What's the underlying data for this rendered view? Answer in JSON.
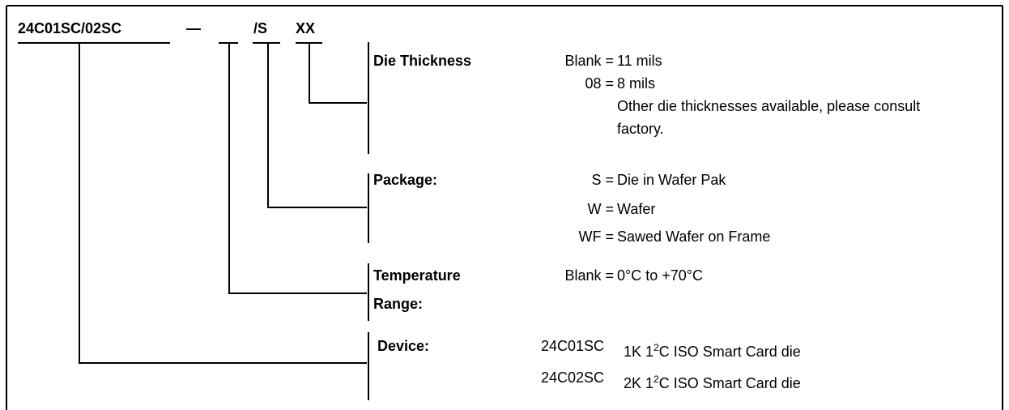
{
  "part_number": {
    "base": "24C01SC/02SC",
    "dash": "—",
    "package_code": "/S",
    "thickness_code": "XX"
  },
  "sections": [
    {
      "label": [
        "Die Thickness"
      ],
      "options": [
        {
          "code": "Blank =",
          "text": "11 mils"
        },
        {
          "code": "08 =",
          "text": "8 mils"
        }
      ],
      "note": "Other die thicknesses available, please consult factory."
    },
    {
      "label": [
        "Package:"
      ],
      "options": [
        {
          "code": "S =",
          "text": "Die in Wafer Pak"
        },
        {
          "code": "W =",
          "text": "Wafer"
        },
        {
          "code": "WF =",
          "text": "Sawed Wafer on Frame"
        }
      ]
    },
    {
      "label": [
        "Temperature",
        "Range:"
      ],
      "options": [
        {
          "code": "Blank =",
          "text": "0°C to +70°C"
        }
      ]
    },
    {
      "label": [
        "Device:"
      ],
      "options": [
        {
          "code": "24C01SC",
          "text": [
            "1K 1",
            "2",
            "C ISO Smart Card die"
          ]
        },
        {
          "code": "24C02SC",
          "text": [
            "2K 1",
            "2",
            "C ISO Smart Card die"
          ]
        }
      ]
    }
  ]
}
